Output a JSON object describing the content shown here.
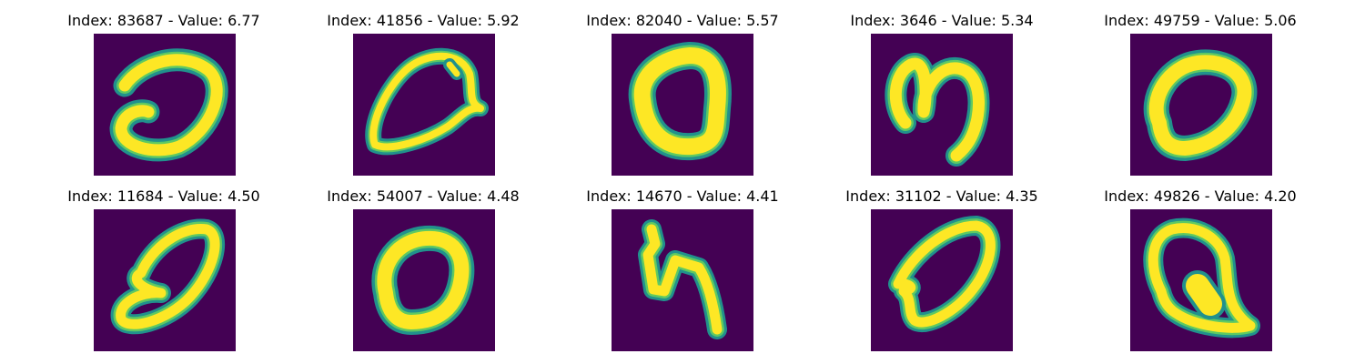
{
  "colors": {
    "background": "#440154",
    "stroke_edge": "#21918c",
    "stroke_mid": "#5ec962",
    "stroke_core": "#fde725"
  },
  "panels": [
    {
      "index": "83687",
      "value": "6.77",
      "title": "Index: 83687 - Value: 6.77",
      "glyph": "open-loop-digit"
    },
    {
      "index": "41856",
      "value": "5.92",
      "title": "Index: 41856 - Value: 5.92",
      "glyph": "teardrop-zero"
    },
    {
      "index": "82040",
      "value": "5.57",
      "title": "Index: 82040 - Value: 5.57",
      "glyph": "rounded-zero"
    },
    {
      "index": "3646",
      "value": "5.34",
      "title": "Index: 3646 - Value: 5.34",
      "glyph": "hooked-zero"
    },
    {
      "index": "49759",
      "value": "5.06",
      "title": "Index: 49759 - Value: 5.06",
      "glyph": "slanted-zero"
    },
    {
      "index": "11684",
      "value": "4.50",
      "title": "Index: 11684 - Value: 4.50",
      "glyph": "looped-zero"
    },
    {
      "index": "54007",
      "value": "4.48",
      "title": "Index: 54007 - Value: 4.48",
      "glyph": "round-zero"
    },
    {
      "index": "14670",
      "value": "4.41",
      "title": "Index: 14670 - Value: 4.41",
      "glyph": "angular-four"
    },
    {
      "index": "31102",
      "value": "4.35",
      "title": "Index: 31102 - Value: 4.35",
      "glyph": "leaf-zero"
    },
    {
      "index": "49826",
      "value": "4.20",
      "title": "Index: 49826 - Value: 4.20",
      "glyph": "q-shaped-zero"
    }
  ]
}
